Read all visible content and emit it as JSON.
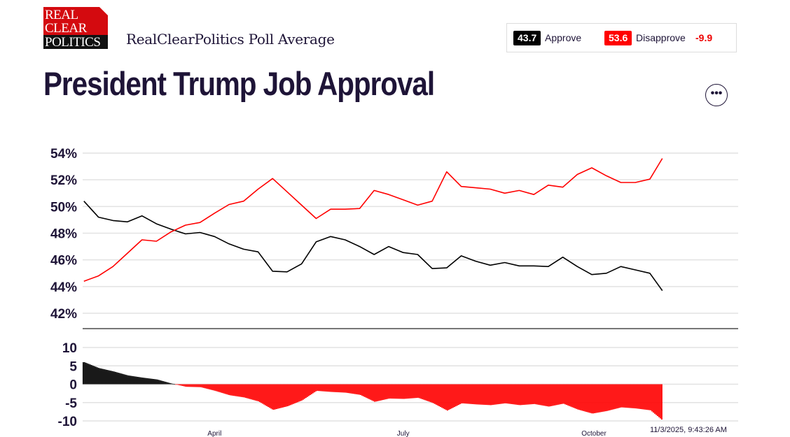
{
  "header": {
    "logo": {
      "line1": "REAL",
      "line2": "CLEAR",
      "line3": "POLITICS"
    },
    "subtitle": "RealClearPolitics Poll Average",
    "title": "President Trump Job Approval",
    "more_icon": "ellipsis-icon",
    "more_label": "•••"
  },
  "legend": {
    "approve_value": "43.7",
    "approve_label": "Approve",
    "disapprove_value": "53.6",
    "disapprove_label": "Disapprove",
    "spread": "-9.9"
  },
  "timestamp": "11/3/2025, 9:43:26 AM",
  "colors": {
    "approve": "#000000",
    "disapprove": "#ff0000",
    "text": "#1e1437"
  },
  "chart_data": [
    {
      "type": "line",
      "ylim": [
        42,
        54
      ],
      "yticks": [
        "54%",
        "52%",
        "50%",
        "48%",
        "46%",
        "44%",
        "42%"
      ],
      "ytick_values": [
        54,
        52,
        50,
        48,
        46,
        44,
        42
      ],
      "grid": true,
      "x": [
        "2025-01-28",
        "2025-02-04",
        "2025-02-11",
        "2025-02-18",
        "2025-02-25",
        "2025-03-04",
        "2025-03-11",
        "2025-03-18",
        "2025-03-25",
        "2025-04-01",
        "2025-04-08",
        "2025-04-15",
        "2025-04-22",
        "2025-04-29",
        "2025-05-06",
        "2025-05-13",
        "2025-05-20",
        "2025-05-27",
        "2025-06-03",
        "2025-06-10",
        "2025-06-17",
        "2025-06-24",
        "2025-07-01",
        "2025-07-08",
        "2025-07-15",
        "2025-07-22",
        "2025-07-29",
        "2025-08-05",
        "2025-08-12",
        "2025-08-19",
        "2025-08-26",
        "2025-09-02",
        "2025-09-09",
        "2025-09-16",
        "2025-09-23",
        "2025-09-30",
        "2025-10-07",
        "2025-10-14",
        "2025-10-21",
        "2025-10-28",
        "2025-11-03"
      ],
      "series": [
        {
          "name": "Approve",
          "color": "#000000",
          "values": [
            50.4,
            49.2,
            48.95,
            48.85,
            49.3,
            48.7,
            48.3,
            47.95,
            48.05,
            47.75,
            47.2,
            46.8,
            46.6,
            45.15,
            45.1,
            45.7,
            47.35,
            47.75,
            47.5,
            47.0,
            46.4,
            47.0,
            46.55,
            46.4,
            45.35,
            45.4,
            46.3,
            45.9,
            45.6,
            45.8,
            45.55,
            45.55,
            45.5,
            46.2,
            45.5,
            44.9,
            45.0,
            45.5,
            45.25,
            45.0,
            43.7
          ]
        },
        {
          "name": "Disapprove",
          "color": "#ff0000",
          "values": [
            44.4,
            44.8,
            45.5,
            46.5,
            47.5,
            47.4,
            48.1,
            48.6,
            48.8,
            49.5,
            50.15,
            50.4,
            51.3,
            52.1,
            51.1,
            50.1,
            49.1,
            49.8,
            49.8,
            49.85,
            51.2,
            50.9,
            50.5,
            50.1,
            50.4,
            52.6,
            51.5,
            51.4,
            51.3,
            51.0,
            51.2,
            50.9,
            51.6,
            51.45,
            52.4,
            52.9,
            52.3,
            51.8,
            51.8,
            52.05,
            53.6
          ]
        }
      ]
    },
    {
      "type": "bar",
      "ylim": [
        -10,
        10
      ],
      "yticks": [
        "10",
        "5",
        "0",
        "-5",
        "-10"
      ],
      "ytick_values": [
        10,
        5,
        0,
        -5,
        -10
      ],
      "grid": true,
      "xticks": [
        "April",
        "July",
        "October"
      ],
      "xtick_dates": [
        "2025-04-01",
        "2025-07-01",
        "2025-10-01"
      ],
      "positive_color": "#000000",
      "negative_color": "#ff0000",
      "values": [
        6.0,
        4.4,
        3.5,
        2.4,
        1.8,
        1.3,
        0.2,
        -0.7,
        -0.8,
        -1.8,
        -3.0,
        -3.6,
        -4.7,
        -7.0,
        -6.0,
        -4.4,
        -1.8,
        -2.1,
        -2.3,
        -2.9,
        -4.8,
        -3.9,
        -4.0,
        -3.7,
        -5.1,
        -7.2,
        -5.2,
        -5.5,
        -5.7,
        -5.2,
        -5.7,
        -5.4,
        -6.1,
        -5.3,
        -6.9,
        -8.0,
        -7.3,
        -6.3,
        -6.6,
        -7.1,
        -9.9
      ]
    }
  ]
}
